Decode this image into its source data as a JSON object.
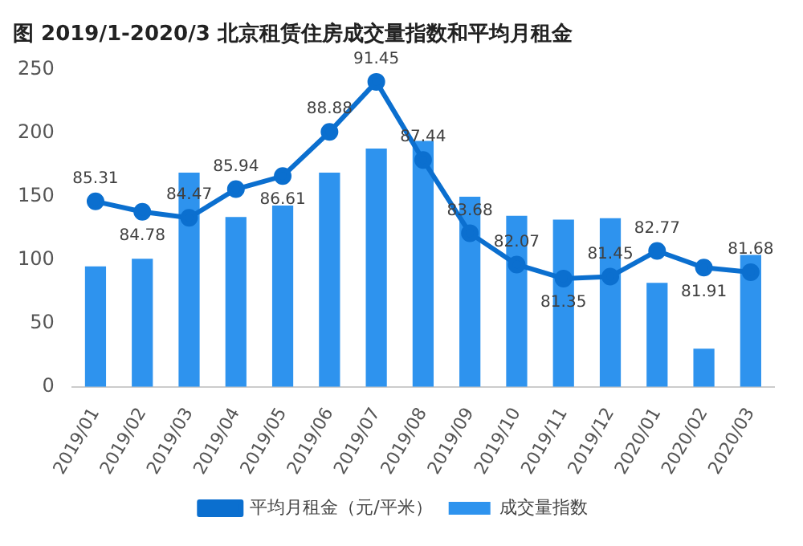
{
  "chart_data": {
    "type": "bar",
    "title": "图 2019/1-2020/3 北京租赁住房成交量指数和平均月租金",
    "categories": [
      "2019/01",
      "2019/02",
      "2019/03",
      "2019/04",
      "2019/05",
      "2019/06",
      "2019/07",
      "2019/08",
      "2019/09",
      "2019/10",
      "2019/11",
      "2019/12",
      "2020/01",
      "2020/02",
      "2020/03"
    ],
    "series": [
      {
        "name": "成交量指数",
        "color": "#2e93ee",
        "values": [
          95,
          101,
          169,
          134,
          143,
          169,
          188,
          194,
          150,
          135,
          132,
          133,
          82,
          30,
          104
        ]
      },
      {
        "name": "平均月租金（元/平米）",
        "type": "line",
        "axis": "y2",
        "color": "#0b6fcf",
        "values": [
          85.31,
          84.78,
          84.47,
          85.94,
          86.61,
          88.88,
          91.45,
          87.44,
          83.68,
          82.07,
          81.35,
          81.45,
          82.77,
          81.91,
          81.68
        ],
        "value_labels": [
          "85.31",
          "84.78",
          "84.47",
          "85.94",
          "86.61",
          "88.88",
          "91.45",
          "87.44",
          "83.68",
          "82.07",
          "81.35",
          "81.45",
          "82.77",
          "81.91",
          "81.68"
        ]
      }
    ],
    "ylim": [
      0,
      250
    ],
    "yticks": [
      0,
      50,
      100,
      150,
      200,
      250
    ],
    "grid": false,
    "legend": "bottom",
    "marker": "circle",
    "line_style": "solid"
  }
}
